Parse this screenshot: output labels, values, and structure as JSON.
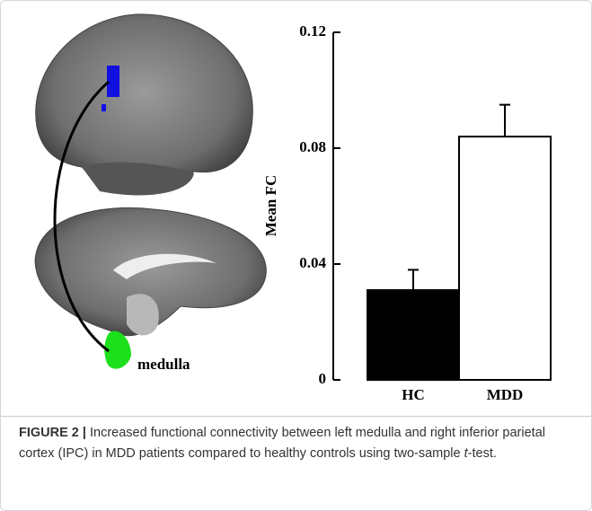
{
  "chart_data": {
    "type": "bar",
    "ylabel": "Mean FC",
    "categories": [
      "HC",
      "MDD"
    ],
    "values": [
      0.031,
      0.084
    ],
    "errors": [
      0.007,
      0.011
    ],
    "colors": [
      "#000000",
      "#ffffff"
    ],
    "ylim": [
      0,
      0.12
    ],
    "yticks": [
      0,
      0.04,
      0.08,
      0.12
    ]
  },
  "figure": {
    "image_label": "medulla"
  },
  "caption": {
    "label": "FIGURE 2 |",
    "text_before": " Increased functional connectivity between left medulla and right inferior parietal cortex (IPC) in MDD patients compared to healthy controls using two-sample ",
    "italic": "t",
    "text_after": "-test."
  }
}
